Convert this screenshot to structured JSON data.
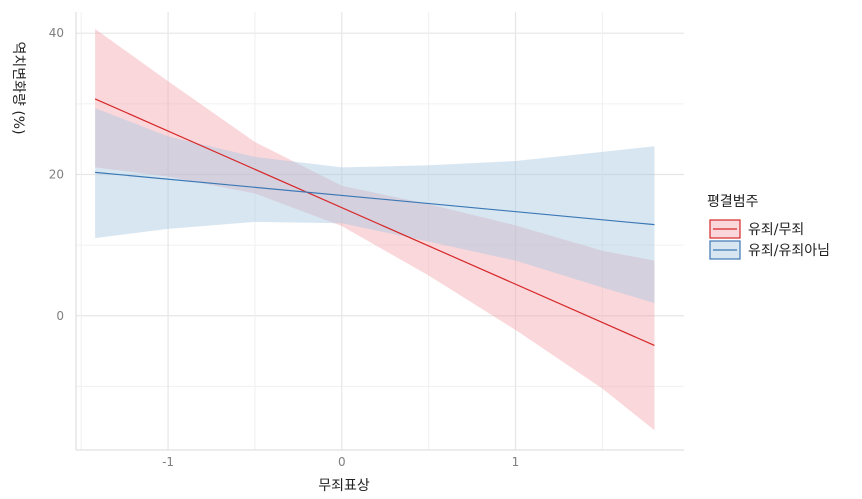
{
  "chart_data": {
    "type": "line",
    "xlabel": "무죄표상",
    "ylabel": "역치변화량 (%)",
    "xlim": [
      -1.53,
      1.97
    ],
    "ylim": [
      -19,
      43
    ],
    "x_ticks": [
      -1,
      0,
      1
    ],
    "x_tick_labels": [
      "-1",
      "0",
      "1"
    ],
    "y_ticks": [
      0,
      20,
      40
    ],
    "y_tick_labels": [
      "0",
      "20",
      "40"
    ],
    "grid": true,
    "legend": {
      "title": "평결범주",
      "position": "right"
    },
    "series": [
      {
        "name": "유죄/무죄",
        "color": "#d62728",
        "fill": "#f4a6ad",
        "x": [
          -1.42,
          1.8
        ],
        "y": [
          30.7,
          -4.2
        ],
        "ci_x": [
          -1.42,
          -1.0,
          -0.5,
          0.0,
          0.5,
          1.0,
          1.5,
          1.8
        ],
        "ci_lower": [
          21.0,
          19.7,
          17.3,
          12.7,
          5.7,
          -2.0,
          -10.3,
          -16.2
        ],
        "ci_upper": [
          40.6,
          33.2,
          24.6,
          18.4,
          15.8,
          12.8,
          9.2,
          7.8
        ]
      },
      {
        "name": "유죄/유죄아님",
        "color": "#3b78b5",
        "fill": "#a9c8e3",
        "x": [
          -1.42,
          1.8
        ],
        "y": [
          20.3,
          12.9
        ],
        "ci_x": [
          -1.42,
          -1.0,
          -0.5,
          0.0,
          0.5,
          1.0,
          1.5,
          1.8
        ],
        "ci_lower": [
          11.0,
          12.3,
          13.3,
          13.1,
          10.5,
          7.8,
          4.0,
          1.8
        ],
        "ci_upper": [
          29.4,
          25.4,
          22.5,
          21.0,
          21.3,
          21.9,
          23.2,
          24.0
        ]
      }
    ]
  }
}
